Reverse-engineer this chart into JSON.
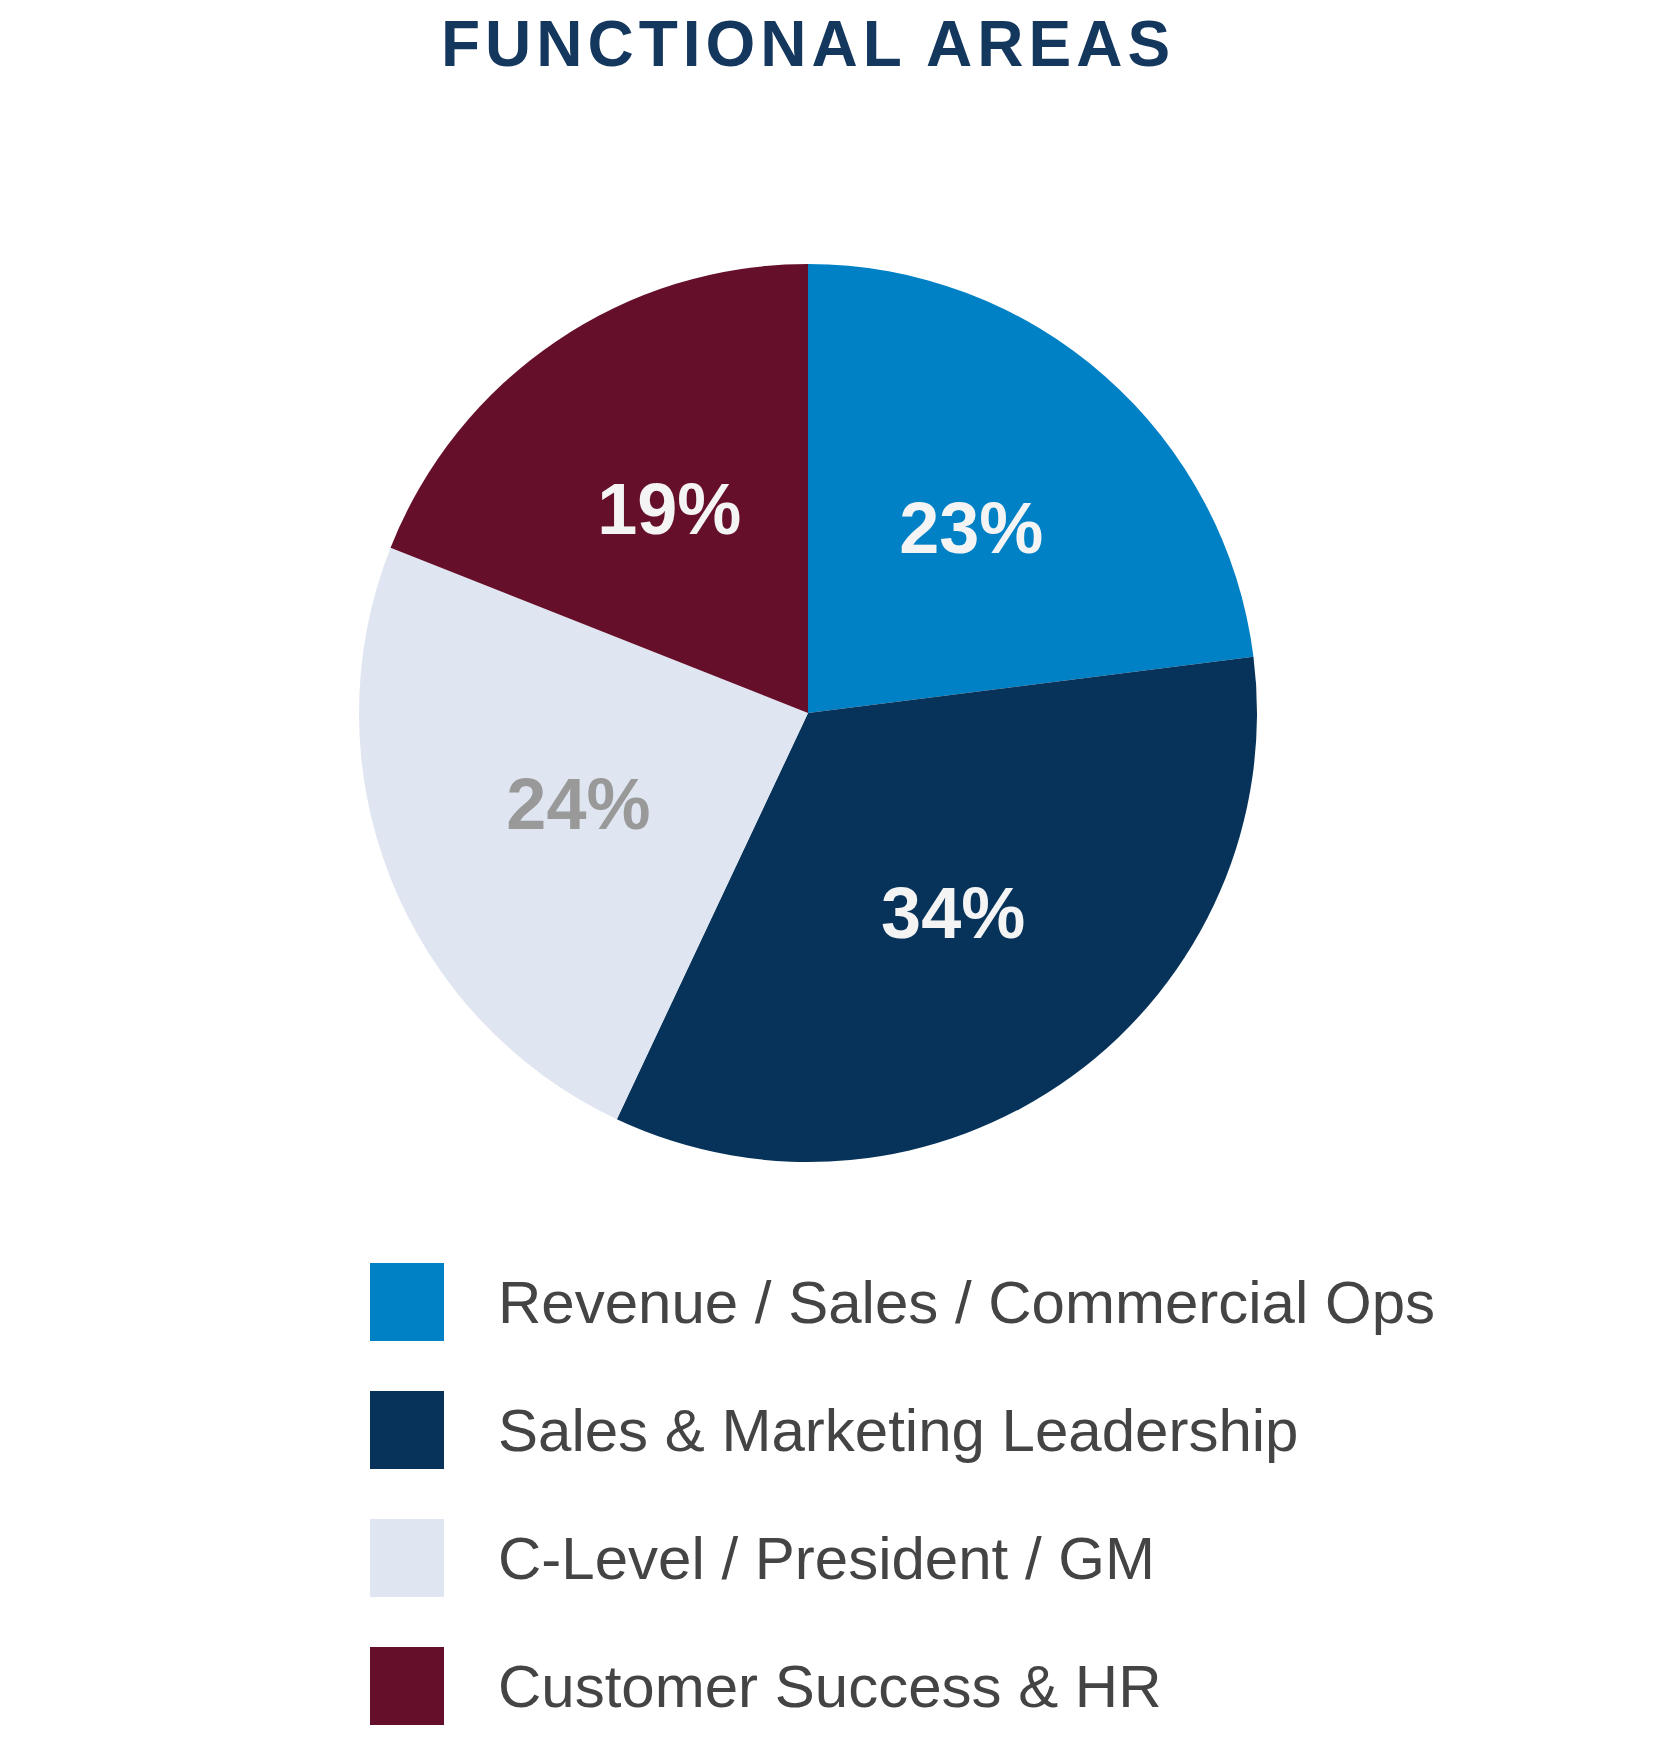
{
  "chart_data": {
    "type": "pie",
    "title": "FUNCTIONAL AREAS",
    "categories": [
      "Revenue / Sales / Commercial Ops",
      "Sales & Marketing Leadership",
      "C-Level / President / GM",
      "Customer Success & HR"
    ],
    "values": [
      23,
      34,
      24,
      19
    ],
    "colors": [
      "#0081c6",
      "#07335a",
      "#dfe6f1",
      "#660f2a"
    ],
    "value_labels": [
      "23%",
      "34%",
      "24%",
      "19%"
    ],
    "legend": "bottom"
  }
}
